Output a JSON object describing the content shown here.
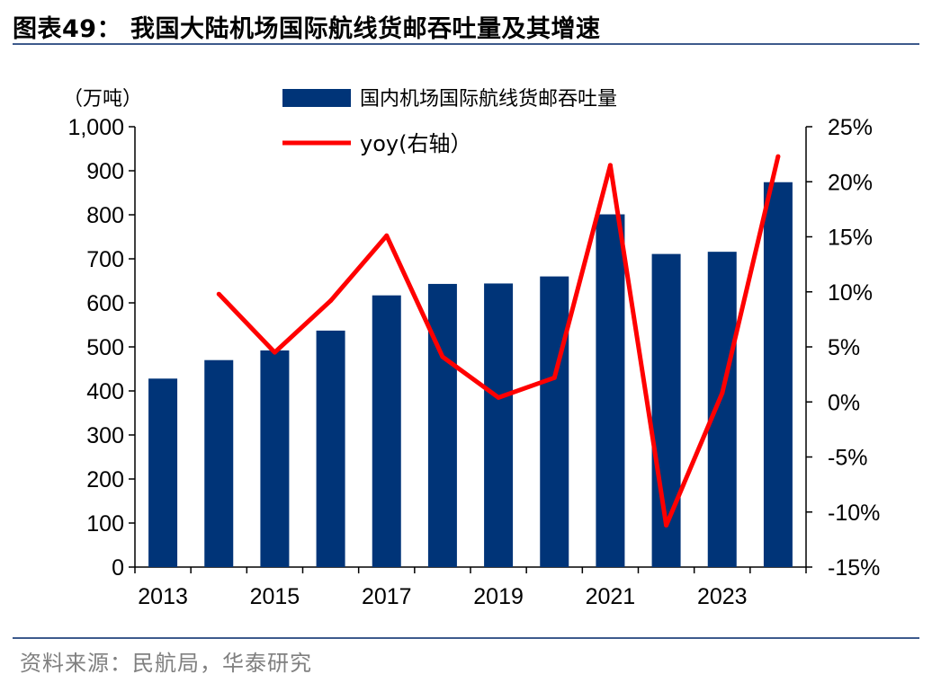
{
  "header": {
    "title": "图表49：  我国大陆机场国际航线货邮吞吐量及其增速"
  },
  "footer": {
    "source": "资料来源：民航局，华泰研究"
  },
  "chart_data": {
    "type": "bar",
    "x": [
      2013,
      2014,
      2015,
      2016,
      2017,
      2018,
      2019,
      2020,
      2021,
      2022,
      2023,
      2024
    ],
    "x_tick_labels": [
      "2013",
      "2015",
      "2017",
      "2019",
      "2021",
      "2023"
    ],
    "left_axis": {
      "unit_label": "（万吨）",
      "ylim": [
        0,
        1000
      ],
      "ticks": [
        "0",
        "100",
        "200",
        "300",
        "400",
        "500",
        "600",
        "700",
        "800",
        "900",
        "1,000"
      ]
    },
    "right_axis": {
      "ylim": [
        -15,
        25
      ],
      "ticks": [
        "-15%",
        "-10%",
        "-5%",
        "0%",
        "5%",
        "10%",
        "15%",
        "20%",
        "25%"
      ]
    },
    "series": [
      {
        "name": "国内机场国际航线货邮吞吐量",
        "type": "bar",
        "axis": "left",
        "color": "#003478",
        "values": [
          428,
          470,
          492,
          537,
          617,
          643,
          644,
          660,
          801,
          711,
          716,
          874
        ]
      },
      {
        "name": "yoy(右轴）",
        "type": "line",
        "axis": "right",
        "color": "#ff0000",
        "values": [
          null,
          9.8,
          4.5,
          9.2,
          15.1,
          4.1,
          0.4,
          2.2,
          21.5,
          -11.2,
          0.8,
          22.3
        ]
      }
    ],
    "legend_position": "top-center",
    "grid": false
  }
}
